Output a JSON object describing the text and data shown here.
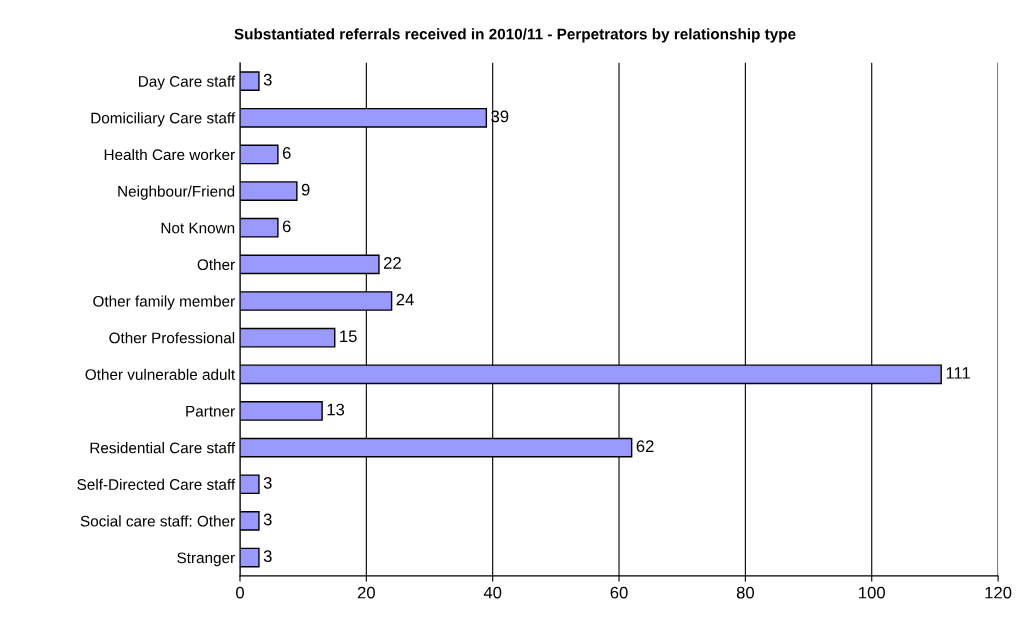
{
  "chart_data": {
    "type": "bar",
    "orientation": "horizontal",
    "title": "Substantiated referrals received in 2010/11 - Perpetrators by relationship type",
    "categories": [
      "Day Care staff",
      "Domiciliary Care staff",
      "Health Care worker",
      "Neighbour/Friend",
      "Not Known",
      "Other",
      "Other family member",
      "Other Professional",
      "Other vulnerable adult",
      "Partner",
      "Residential Care staff",
      "Self-Directed Care staff",
      "Social care staff: Other",
      "Stranger"
    ],
    "values": [
      3,
      39,
      6,
      9,
      6,
      22,
      24,
      15,
      111,
      13,
      62,
      3,
      3,
      3
    ],
    "color": "#9999ff",
    "xlim": [
      0,
      120
    ],
    "xticks": [
      0,
      20,
      40,
      60,
      80,
      100,
      120
    ],
    "grid": "x",
    "data_labels": true,
    "legend": false
  }
}
